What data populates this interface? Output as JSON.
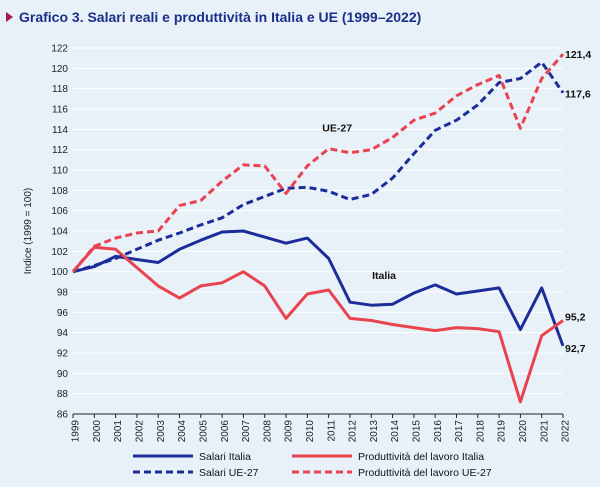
{
  "title": "Grafico 3. Salari reali e produttività in Italia e UE (1999–2022)",
  "colors": {
    "italy_wages": "#1c2d9a",
    "italy_productivity": "#e8434f",
    "background": "#e9f1f8",
    "grid": "#ffffff",
    "title_marker": "#a8185b"
  },
  "chart_data": {
    "type": "line",
    "title": "Grafico 3. Salari reali e produttività in Italia e UE (1999–2022)",
    "xlabel": "",
    "ylabel": "Indice (1999 = 100)",
    "ylim": [
      86,
      122
    ],
    "yticks": [
      86,
      88,
      90,
      92,
      94,
      96,
      98,
      100,
      102,
      104,
      106,
      108,
      110,
      112,
      114,
      116,
      118,
      120,
      122
    ],
    "grid": true,
    "x": [
      "1999",
      "2000",
      "2001",
      "2002",
      "2003",
      "2004",
      "2005",
      "2006",
      "2007",
      "2008",
      "2009",
      "2010",
      "2011",
      "2012",
      "2013",
      "2014",
      "2015",
      "2016",
      "2017",
      "2018",
      "2019",
      "2020",
      "2021",
      "2022"
    ],
    "series": [
      {
        "name": "Salari Italia",
        "style": "solid",
        "color": "#1c2d9a",
        "values": [
          100,
          100.5,
          101.5,
          101.2,
          100.9,
          102.2,
          103.1,
          103.9,
          104.0,
          103.4,
          102.8,
          103.3,
          101.3,
          97.0,
          96.7,
          96.8,
          97.9,
          98.7,
          97.8,
          98.1,
          98.4,
          94.3,
          98.4,
          92.7
        ]
      },
      {
        "name": "Produttività del lavoro Italia",
        "style": "solid",
        "color": "#e8434f",
        "values": [
          100,
          102.4,
          102.2,
          100.4,
          98.6,
          97.4,
          98.6,
          98.9,
          100.0,
          98.6,
          95.4,
          97.8,
          98.2,
          95.4,
          95.2,
          94.8,
          94.5,
          94.2,
          94.5,
          94.4,
          94.1,
          87.2,
          93.7,
          95.2
        ]
      },
      {
        "name": "Salari UE-27",
        "style": "dashed",
        "color": "#1c2d9a",
        "values": [
          100,
          100.6,
          101.3,
          102.2,
          103.1,
          103.8,
          104.6,
          105.3,
          106.6,
          107.4,
          108.2,
          108.3,
          107.9,
          107.1,
          107.6,
          109.2,
          111.6,
          113.9,
          114.9,
          116.4,
          118.6,
          119.0,
          120.6,
          117.6
        ]
      },
      {
        "name": "Produttività del lavoro UE-27",
        "style": "dashed",
        "color": "#e8434f",
        "values": [
          100,
          102.5,
          103.3,
          103.8,
          104.0,
          106.5,
          107.0,
          108.9,
          110.5,
          110.4,
          107.7,
          110.4,
          112.1,
          111.7,
          112.0,
          113.2,
          114.9,
          115.6,
          117.3,
          118.4,
          119.3,
          114.1,
          119.0,
          121.4
        ]
      }
    ],
    "annotations": [
      {
        "text": "UE-27",
        "near": "series 3 around 2012"
      },
      {
        "text": "Italia",
        "near": "series 1 around 2014"
      }
    ],
    "end_labels": [
      "121,4",
      "117,6",
      "95,2",
      "92,7"
    ],
    "legend": [
      {
        "label": "Salari Italia",
        "style": "solid",
        "color": "#1c2d9a"
      },
      {
        "label": "Produttività del lavoro Italia",
        "style": "solid",
        "color": "#e8434f"
      },
      {
        "label": "Salari UE-27",
        "style": "dashed",
        "color": "#1c2d9a"
      },
      {
        "label": "Produttività del lavoro UE-27",
        "style": "dashed",
        "color": "#e8434f"
      }
    ],
    "legend_position": "bottom"
  }
}
